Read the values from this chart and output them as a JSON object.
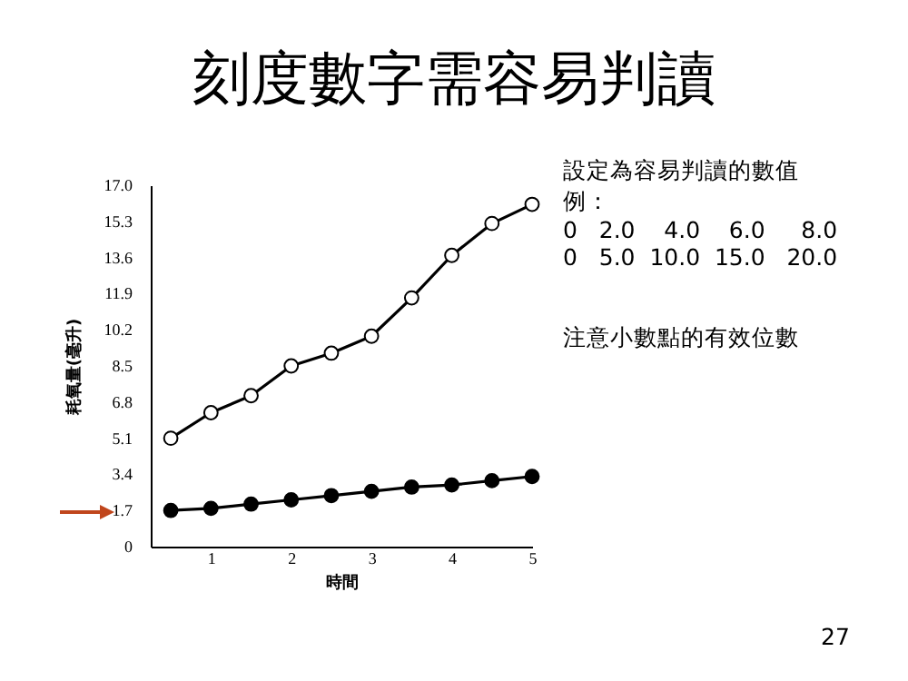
{
  "chart_data": {
    "type": "line",
    "title": "刻度數字需容易判讀",
    "xlabel": "時間",
    "ylabel": "耗氧量(毫升)",
    "x": [
      0.5,
      1,
      1.5,
      2,
      2.5,
      3,
      3.5,
      4,
      4.5,
      5
    ],
    "series": [
      {
        "color": "#000000",
        "values": [
          5.1,
          6.3,
          7.1,
          8.5,
          9.1,
          9.9,
          11.7,
          13.7,
          15.2,
          16.1
        ]
      },
      {
        "color": "#000000",
        "values": [
          1.7,
          1.8,
          2.0,
          2.2,
          2.4,
          2.6,
          2.8,
          2.9,
          3.1,
          3.3
        ]
      }
    ],
    "xlim": [
      0.25,
      5
    ],
    "xticks": [
      1,
      2,
      3,
      4,
      5
    ],
    "ylim": [
      0,
      17
    ],
    "yticks": [
      0,
      1.7,
      3.4,
      5.1,
      6.8,
      8.5,
      10.2,
      11.9,
      13.6,
      15.3,
      {
        "value": 17,
        "label": "17.0"
      }
    ],
    "marker": "circle",
    "grid": false,
    "annotations": [
      "設定為容易判讀的數值例：",
      "0   2.0    4.0    6.0     8.0",
      "0   5.0  10.0  15.0   20.0",
      "注意小數點的有效位數",
      "27"
    ]
  }
}
